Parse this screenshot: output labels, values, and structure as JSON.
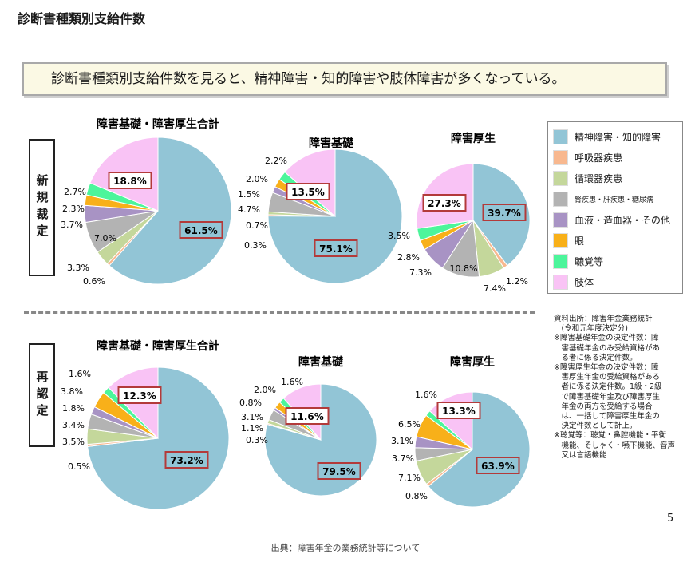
{
  "page_title": "診断書種類別支給件数",
  "summary": "診断書種類別支給件数を見ると、精神障害・知的障害や肢体障害が多くなっている。",
  "row_labels": {
    "new": "新規裁定",
    "renew": "再認定"
  },
  "legend": [
    {
      "label": "精神障害・知的障害",
      "color": "#92c5d6"
    },
    {
      "label": "呼吸器疾患",
      "color": "#f8b88f"
    },
    {
      "label": "循環器疾患",
      "color": "#c4d79b"
    },
    {
      "label": "腎疾患・肝疾患・糖尿病",
      "color": "#b3b3b3"
    },
    {
      "label": "血液・造血器・その他",
      "color": "#a893c4"
    },
    {
      "label": "眼",
      "color": "#f8b019"
    },
    {
      "label": "聴覚等",
      "color": "#4cf59b"
    },
    {
      "label": "肢体",
      "color": "#f9c3f5"
    }
  ],
  "notes": [
    "資料出所：障害年金業務統計",
    "　(令和元年度決定分)",
    "※障害基礎年金の決定件数：障",
    "　害基礎年金のみ受給資格があ",
    "　る者に係る決定件数。",
    "※障害厚生年金の決定件数：障",
    "　害厚生年金の受給資格がある",
    "　者に係る決定件数。1級・2級",
    "　で障害基礎年金及び障害厚生",
    "　年金の両方を受給する場合",
    "　は、一括して障害厚生年金の",
    "　決定件数として計上。",
    "※聴覚等：聴覚・鼻腔機能・平衡",
    "　機能、そしゃく・嚥下機能、音声",
    "　又は言語機能"
  ],
  "page_number": "5",
  "source": "出典：障害年金の業務統計等について",
  "chart_data": [
    {
      "type": "pie",
      "title": "障害基礎・障害厚生合計",
      "row": "新規裁定",
      "categories": [
        "精神障害・知的障害",
        "呼吸器疾患",
        "循環器疾患",
        "腎疾患・肝疾患・糖尿病",
        "血液・造血器・その他",
        "眼",
        "聴覚等",
        "肢体"
      ],
      "values": [
        61.5,
        0.6,
        3.3,
        7.0,
        3.7,
        2.3,
        2.7,
        18.8
      ],
      "labels": [
        "61.5%",
        "0.6%",
        "3.3%",
        "7.0%",
        "3.7%",
        "2.3%",
        "2.7%",
        "18.8%"
      ]
    },
    {
      "type": "pie",
      "title": "障害基礎",
      "row": "新規裁定",
      "categories": [
        "精神障害・知的障害",
        "呼吸器疾患",
        "循環器疾患",
        "腎疾患・肝疾患・糖尿病",
        "血液・造血器・その他",
        "眼",
        "聴覚等",
        "肢体"
      ],
      "values": [
        75.1,
        0.3,
        0.7,
        4.7,
        1.5,
        2.0,
        2.2,
        13.5
      ],
      "labels": [
        "75.1%",
        "0.3%",
        "0.7%",
        "4.7%",
        "1.5%",
        "2.0%",
        "2.2%",
        "13.5%"
      ]
    },
    {
      "type": "pie",
      "title": "障害厚生",
      "row": "新規裁定",
      "categories": [
        "精神障害・知的障害",
        "呼吸器疾患",
        "循環器疾患",
        "腎疾患・肝疾患・糖尿病",
        "血液・造血器・その他",
        "眼",
        "聴覚等",
        "肢体"
      ],
      "values": [
        39.7,
        1.2,
        7.4,
        10.8,
        7.3,
        2.8,
        3.5,
        27.3
      ],
      "labels": [
        "39.7%",
        "1.2%",
        "7.4%",
        "10.8%",
        "7.3%",
        "2.8%",
        "3.5%",
        "27.3%"
      ]
    },
    {
      "type": "pie",
      "title": "障害基礎・障害厚生合計",
      "row": "再認定",
      "categories": [
        "精神障害・知的障害",
        "呼吸器疾患",
        "循環器疾患",
        "腎疾患・肝疾患・糖尿病",
        "血液・造血器・その他",
        "眼",
        "聴覚等",
        "肢体"
      ],
      "values": [
        73.2,
        0.5,
        3.5,
        3.4,
        1.8,
        3.8,
        1.6,
        12.3
      ],
      "labels": [
        "73.2%",
        "0.5%",
        "3.5%",
        "3.4%",
        "1.8%",
        "3.8%",
        "1.6%",
        "12.3%"
      ]
    },
    {
      "type": "pie",
      "title": "障害基礎",
      "row": "再認定",
      "categories": [
        "精神障害・知的障害",
        "呼吸器疾患",
        "循環器疾患",
        "腎疾患・肝疾患・糖尿病",
        "血液・造血器・その他",
        "眼",
        "聴覚等",
        "肢体"
      ],
      "values": [
        79.5,
        0.3,
        1.1,
        3.1,
        0.8,
        2.0,
        1.6,
        11.6
      ],
      "labels": [
        "79.5%",
        "0.3%",
        "1.1%",
        "3.1%",
        "0.8%",
        "2.0%",
        "1.6%",
        "11.6%"
      ]
    },
    {
      "type": "pie",
      "title": "障害厚生",
      "row": "再認定",
      "categories": [
        "精神障害・知的障害",
        "呼吸器疾患",
        "循環器疾患",
        "腎疾患・肝疾患・糖尿病",
        "血液・造血器・その他",
        "眼",
        "聴覚等",
        "肢体"
      ],
      "values": [
        63.9,
        0.8,
        7.1,
        3.7,
        3.1,
        6.5,
        1.6,
        13.3
      ],
      "labels": [
        "63.9%",
        "0.8%",
        "7.1%",
        "3.7%",
        "3.1%",
        "6.5%",
        "1.6%",
        "13.3%"
      ]
    }
  ]
}
